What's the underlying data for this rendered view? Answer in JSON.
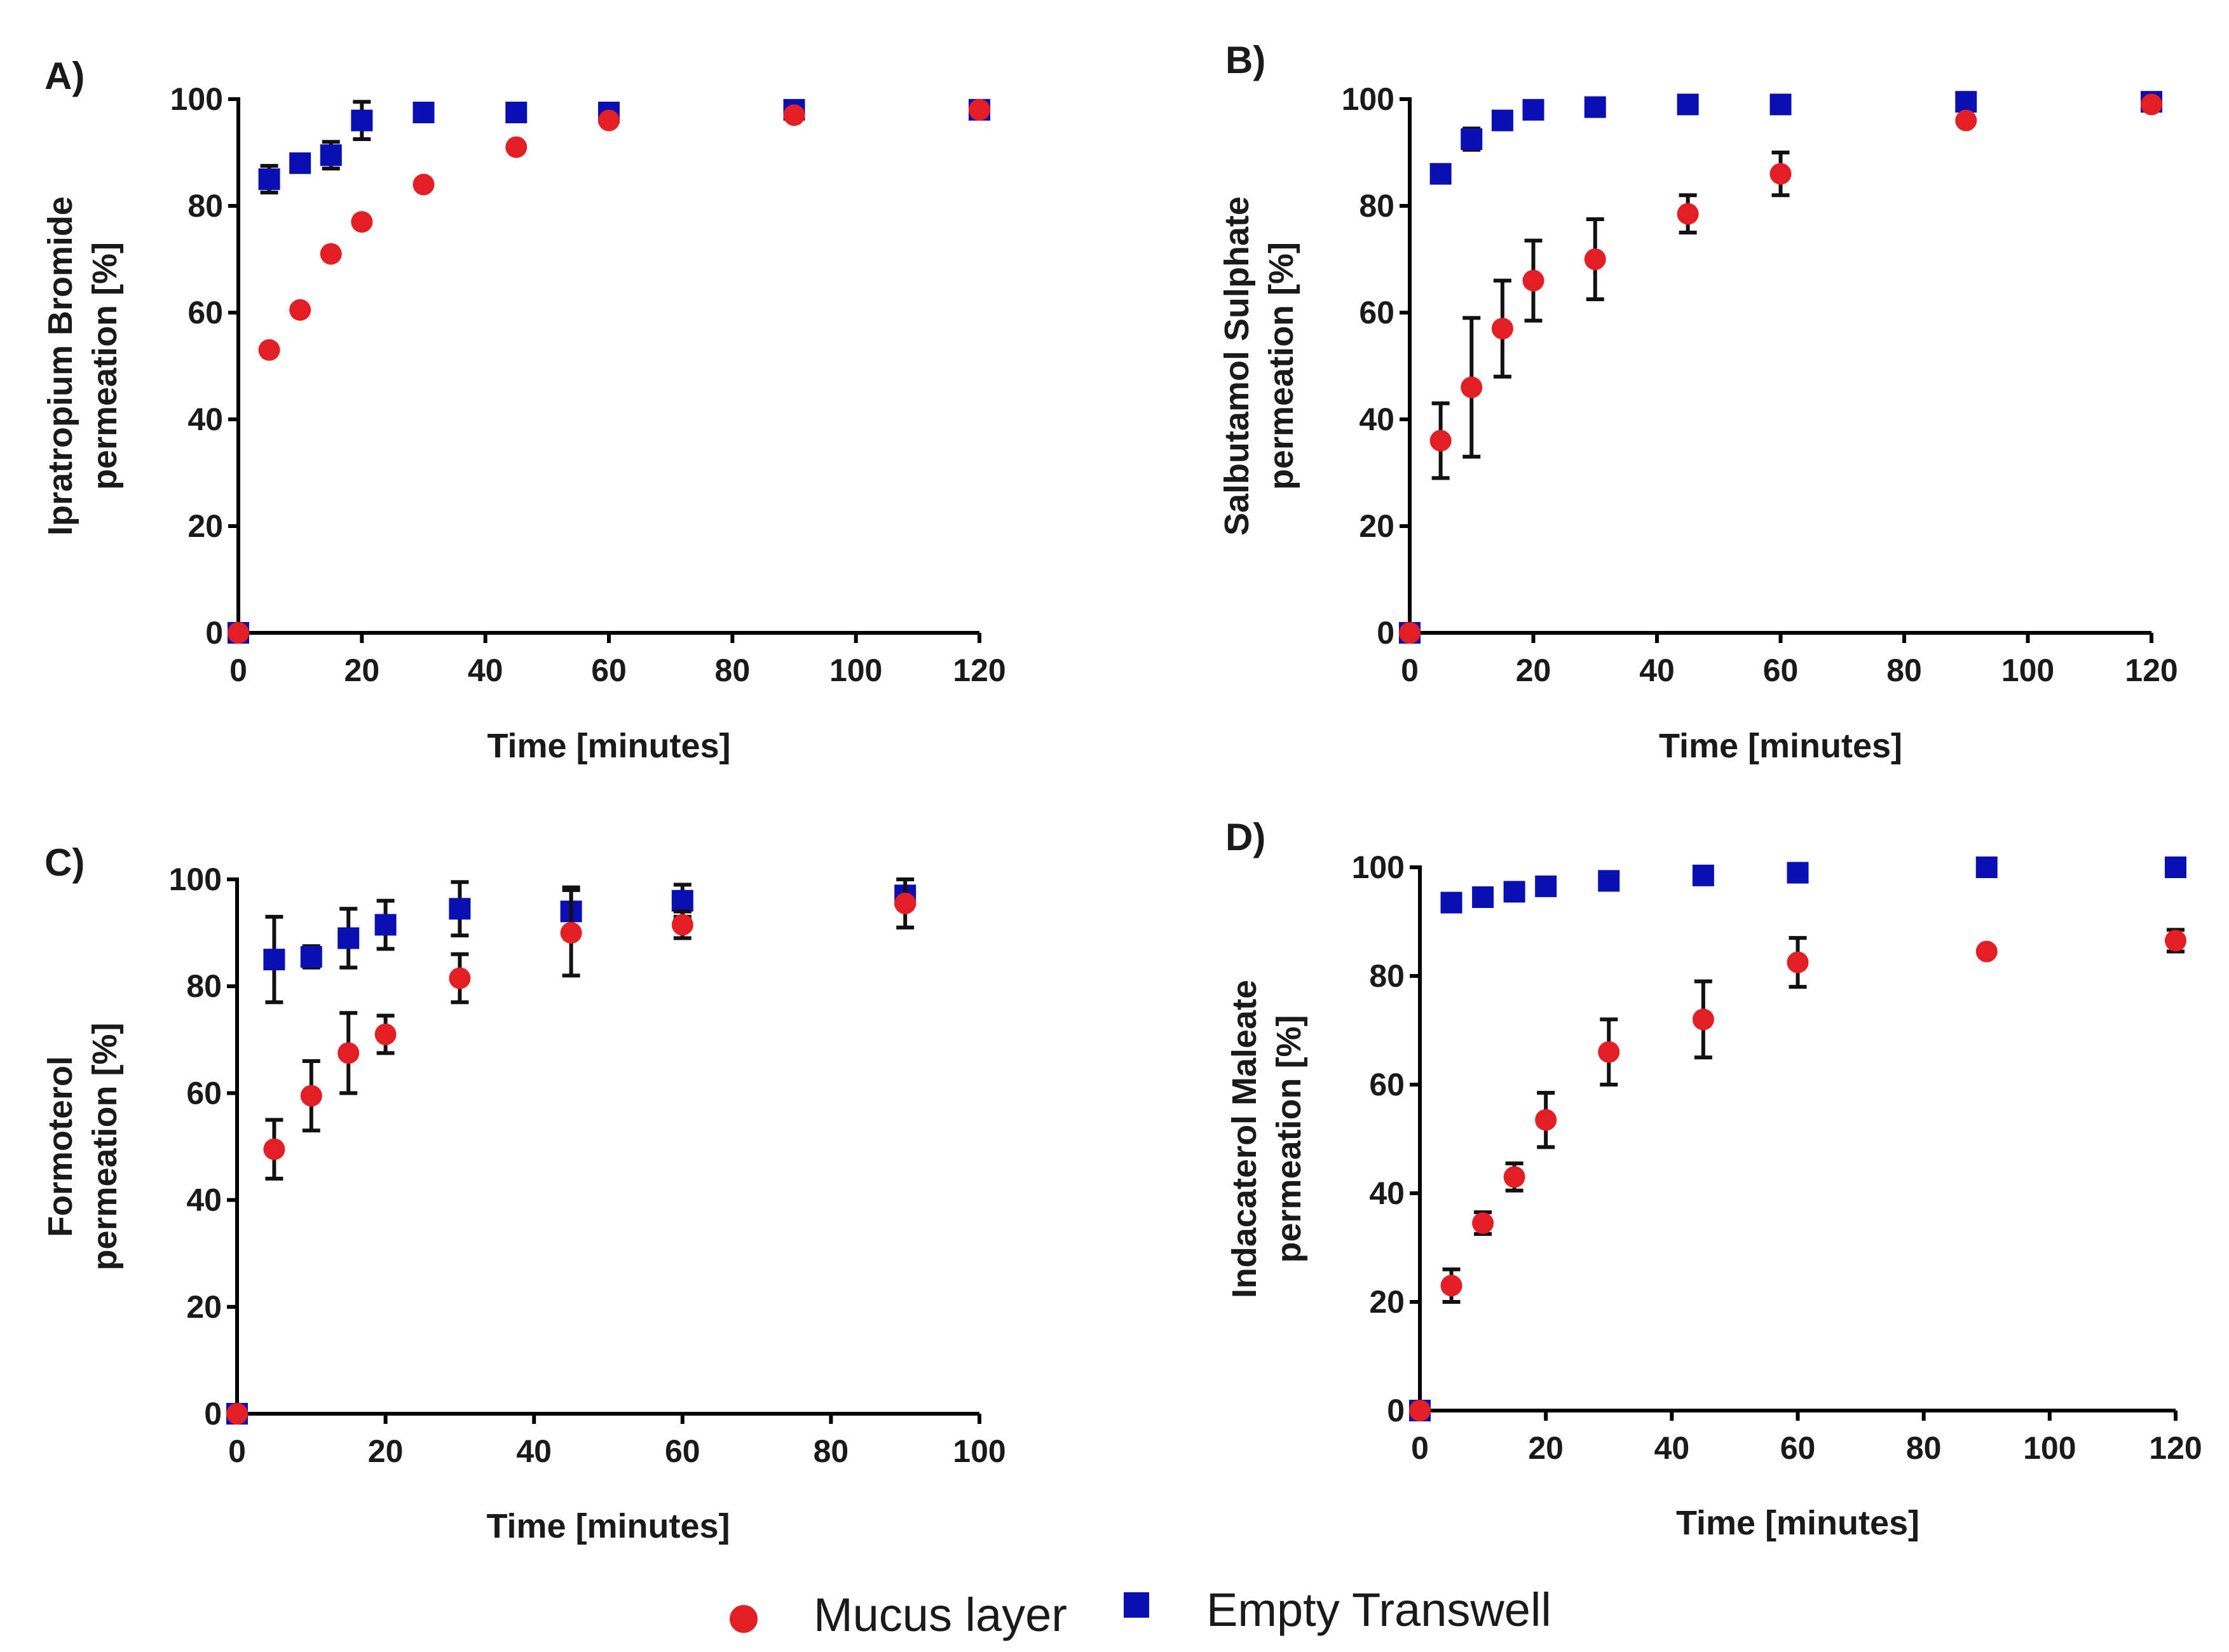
{
  "legend": {
    "items": [
      {
        "label": "Mucus layer",
        "color": "#e31e24",
        "marker": "circle"
      },
      {
        "label": "Empty Transwell",
        "color": "#0a0fb4",
        "marker": "square"
      }
    ]
  },
  "chart_data": [
    {
      "panel": "A)",
      "type": "scatter",
      "xlabel": "Time [minutes]",
      "ylabel": [
        "Ipratropium Bromide",
        "permeation [%]"
      ],
      "xlim": [
        0,
        120
      ],
      "ylim": [
        0,
        100
      ],
      "xticks": [
        0,
        20,
        40,
        60,
        80,
        100,
        120
      ],
      "yticks": [
        0,
        20,
        40,
        60,
        80,
        100
      ],
      "series": [
        {
          "name": "Mucus layer",
          "color": "#e31e24",
          "marker": "circle",
          "x": [
            0,
            5,
            10,
            15,
            20,
            30,
            45,
            60,
            90,
            120
          ],
          "y": [
            0,
            53,
            60.5,
            71,
            77,
            84,
            91,
            96,
            97,
            98
          ],
          "err": [
            0,
            0,
            0,
            0,
            0,
            0,
            0,
            0,
            0,
            0
          ]
        },
        {
          "name": "Empty Transwell",
          "color": "#0a0fb4",
          "marker": "square",
          "x": [
            0,
            5,
            10,
            15,
            20,
            30,
            45,
            60,
            90,
            120
          ],
          "y": [
            0,
            85,
            88,
            89.5,
            96,
            97.5,
            97.5,
            97.5,
            98,
            98
          ],
          "err": [
            0,
            2.5,
            1.5,
            2.5,
            3.5,
            1.5,
            1,
            1,
            1,
            1
          ]
        }
      ]
    },
    {
      "panel": "B)",
      "type": "scatter",
      "xlabel": "Time [minutes]",
      "ylabel": [
        "Salbutamol Sulphate",
        "permeation [%]"
      ],
      "xlim": [
        0,
        120
      ],
      "ylim": [
        0,
        100
      ],
      "xticks": [
        0,
        20,
        40,
        60,
        80,
        100,
        120
      ],
      "yticks": [
        0,
        20,
        40,
        60,
        80,
        100
      ],
      "series": [
        {
          "name": "Mucus layer",
          "color": "#e31e24",
          "marker": "circle",
          "x": [
            0,
            5,
            10,
            15,
            20,
            30,
            45,
            60,
            90,
            120
          ],
          "y": [
            0,
            36,
            46,
            57,
            66,
            70,
            78.5,
            86,
            96,
            99
          ],
          "err": [
            0,
            7,
            13,
            9,
            7.5,
            7.5,
            3.5,
            4,
            0,
            1
          ]
        },
        {
          "name": "Empty Transwell",
          "color": "#0a0fb4",
          "marker": "square",
          "x": [
            0,
            5,
            10,
            15,
            20,
            30,
            45,
            60,
            90,
            120
          ],
          "y": [
            0,
            86,
            92.5,
            96,
            98,
            98.5,
            99,
            99,
            99.5,
            99.5
          ],
          "err": [
            0,
            0.5,
            2,
            0.5,
            0.5,
            0.5,
            0.5,
            0.5,
            0.5,
            0.5
          ]
        }
      ]
    },
    {
      "panel": "C)",
      "type": "scatter",
      "xlabel": "Time [minutes]",
      "ylabel": [
        "Formoterol",
        "permeation [%]"
      ],
      "xlim": [
        0,
        100
      ],
      "ylim": [
        0,
        100
      ],
      "xticks": [
        0,
        20,
        40,
        60,
        80,
        100
      ],
      "yticks": [
        0,
        20,
        40,
        60,
        80,
        100
      ],
      "series": [
        {
          "name": "Mucus layer",
          "color": "#e31e24",
          "marker": "circle",
          "x": [
            0,
            5,
            10,
            15,
            20,
            30,
            45,
            60,
            90
          ],
          "y": [
            0,
            49.5,
            59.5,
            67.5,
            71,
            81.5,
            90,
            91.5,
            95.5
          ],
          "err": [
            0,
            5.5,
            6.5,
            7.5,
            3.5,
            4.5,
            8,
            2.5,
            4.5
          ]
        },
        {
          "name": "Empty Transwell",
          "color": "#0a0fb4",
          "marker": "square",
          "x": [
            0,
            5,
            10,
            15,
            20,
            30,
            45,
            60,
            90
          ],
          "y": [
            0,
            85,
            85.5,
            89,
            91.5,
            94.5,
            94,
            96,
            97
          ],
          "err": [
            0,
            8,
            2,
            5.5,
            4.5,
            5,
            4.5,
            3,
            1
          ]
        }
      ]
    },
    {
      "panel": "D)",
      "type": "scatter",
      "xlabel": "Time [minutes]",
      "ylabel": [
        "Indacaterol Maleate",
        "permeation [%]"
      ],
      "xlim": [
        0,
        120
      ],
      "ylim": [
        0,
        100
      ],
      "xticks": [
        0,
        20,
        40,
        60,
        80,
        100,
        120
      ],
      "yticks": [
        0,
        20,
        40,
        60,
        80,
        100
      ],
      "series": [
        {
          "name": "Mucus layer",
          "color": "#e31e24",
          "marker": "circle",
          "x": [
            0,
            5,
            10,
            15,
            20,
            30,
            45,
            60,
            90,
            120
          ],
          "y": [
            0,
            23,
            34.5,
            43,
            53.5,
            66,
            72,
            82.5,
            84.5,
            86.5
          ],
          "err": [
            0,
            3,
            2,
            2.5,
            5,
            6,
            7,
            4.5,
            0,
            2
          ]
        },
        {
          "name": "Empty Transwell",
          "color": "#0a0fb4",
          "marker": "square",
          "x": [
            0,
            5,
            10,
            15,
            20,
            30,
            45,
            60,
            90,
            120
          ],
          "y": [
            0,
            93.5,
            94.5,
            95.5,
            96.5,
            97.5,
            98.5,
            99,
            100,
            100
          ],
          "err": [
            0,
            0.5,
            0.5,
            0.5,
            0.5,
            0.5,
            0.5,
            0.5,
            0.5,
            0.5
          ]
        }
      ]
    }
  ]
}
